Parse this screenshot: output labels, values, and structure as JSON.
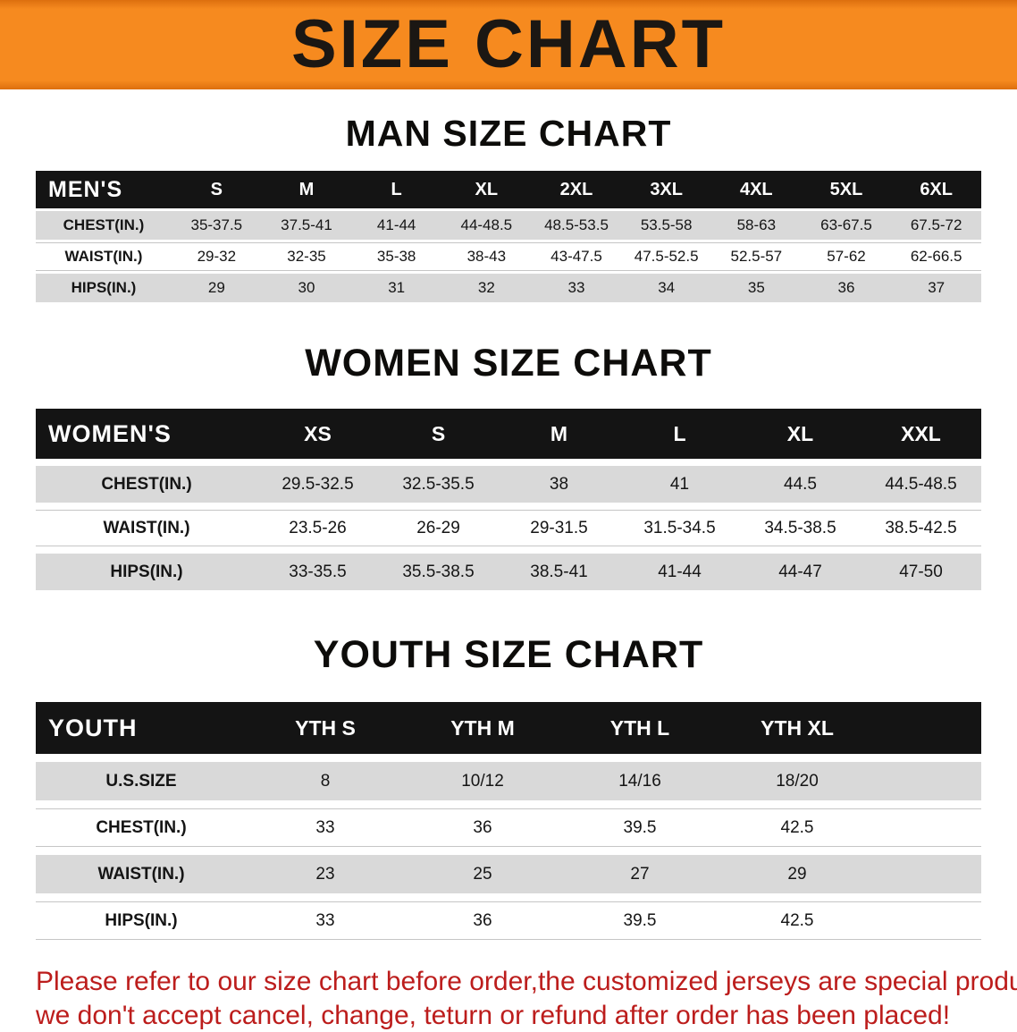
{
  "banner": {
    "title": "SIZE CHART",
    "bg_color": "#f68a1f",
    "text_color": "#1b1713"
  },
  "colors": {
    "header_row_bg": "#141414",
    "row_gray": "#d9d9d9",
    "row_white": "#ffffff",
    "footer_red": "#bc1d1c"
  },
  "sections": [
    {
      "id": "men",
      "heading": "MAN SIZE CHART",
      "table": {
        "corner": "MEN'S",
        "columns": [
          "S",
          "M",
          "L",
          "XL",
          "2XL",
          "3XL",
          "4XL",
          "5XL",
          "6XL"
        ],
        "rows": [
          {
            "label": "CHEST(IN.)",
            "values": [
              "35-37.5",
              "37.5-41",
              "41-44",
              "44-48.5",
              "48.5-53.5",
              "53.5-58",
              "58-63",
              "63-67.5",
              "67.5-72"
            ]
          },
          {
            "label": "WAIST(IN.)",
            "values": [
              "29-32",
              "32-35",
              "35-38",
              "38-43",
              "43-47.5",
              "47.5-52.5",
              "52.5-57",
              "57-62",
              "62-66.5"
            ]
          },
          {
            "label": "HIPS(IN.)",
            "values": [
              "29",
              "30",
              "31",
              "32",
              "33",
              "34",
              "35",
              "36",
              "37"
            ]
          }
        ]
      }
    },
    {
      "id": "women",
      "heading": "WOMEN SIZE CHART",
      "table": {
        "corner": "WOMEN'S",
        "columns": [
          "XS",
          "S",
          "M",
          "L",
          "XL",
          "XXL"
        ],
        "rows": [
          {
            "label": "CHEST(IN.)",
            "values": [
              "29.5-32.5",
              "32.5-35.5",
              "38",
              "41",
              "44.5",
              "44.5-48.5"
            ]
          },
          {
            "label": "WAIST(IN.)",
            "values": [
              "23.5-26",
              "26-29",
              "29-31.5",
              "31.5-34.5",
              "34.5-38.5",
              "38.5-42.5"
            ]
          },
          {
            "label": "HIPS(IN.)",
            "values": [
              "33-35.5",
              "35.5-38.5",
              "38.5-41",
              "41-44",
              "44-47",
              "47-50"
            ]
          }
        ]
      }
    },
    {
      "id": "youth",
      "heading": "YOUTH SIZE CHART",
      "table": {
        "corner": "YOUTH",
        "columns": [
          "YTH S",
          "YTH M",
          "YTH L",
          "YTH XL"
        ],
        "rows": [
          {
            "label": "U.S.SIZE",
            "values": [
              "8",
              "10/12",
              "14/16",
              "18/20"
            ]
          },
          {
            "label": "CHEST(IN.)",
            "values": [
              "33",
              "36",
              "39.5",
              "42.5"
            ]
          },
          {
            "label": "WAIST(IN.)",
            "values": [
              "23",
              "25",
              "27",
              "29"
            ]
          },
          {
            "label": "HIPS(IN.)",
            "values": [
              "33",
              "36",
              "39.5",
              "42.5"
            ]
          }
        ]
      }
    }
  ],
  "footer": {
    "line1": "Please refer to our size chart before order,the customized jerseys are special products,",
    "line2": "we don't accept cancel, change, teturn or refund after order has been placed!"
  }
}
